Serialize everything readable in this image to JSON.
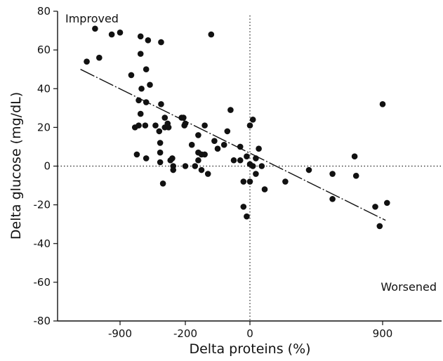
{
  "chart_data": {
    "type": "scatter",
    "xlabel": "Delta proteins (%)",
    "ylabel": "Delta glucose (mg/dL)",
    "xlim": [
      -1200,
      1300
    ],
    "ylim": [
      -80,
      80
    ],
    "x_ticks": [
      -900,
      -200,
      0,
      900
    ],
    "x_tick_labels": [
      "-900",
      "-200",
      "0",
      "900"
    ],
    "y_ticks": [
      -80,
      -60,
      -40,
      -20,
      0,
      20,
      40,
      60,
      80
    ],
    "y_tick_labels": [
      "-80",
      "-60",
      "-40",
      "-20",
      "0",
      "20",
      "40",
      "60",
      "80"
    ],
    "grid": false,
    "reference_lines": {
      "x": 0,
      "y": 0,
      "style": "dotted"
    },
    "annotations": [
      {
        "text": "Improved",
        "position": "top-left"
      },
      {
        "text": "Worsened",
        "position": "bottom-right"
      }
    ],
    "trend_line": {
      "style": "dash-dot",
      "from": [
        -1090,
        50
      ],
      "to": [
        920,
        -28
      ]
    },
    "points": [
      [
        -1020,
        71
      ],
      [
        -940,
        68
      ],
      [
        -900,
        69
      ],
      [
        -680,
        67
      ],
      [
        -600,
        65
      ],
      [
        -460,
        64
      ],
      [
        -1060,
        54
      ],
      [
        -1000,
        56
      ],
      [
        -120,
        68
      ],
      [
        -680,
        58
      ],
      [
        -620,
        50
      ],
      [
        -580,
        42
      ],
      [
        -780,
        47
      ],
      [
        -670,
        40
      ],
      [
        -700,
        34
      ],
      [
        -620,
        33
      ],
      [
        -460,
        32
      ],
      [
        -680,
        27
      ],
      [
        -700,
        21
      ],
      [
        -740,
        20
      ],
      [
        -630,
        21
      ],
      [
        -520,
        21
      ],
      [
        -480,
        18
      ],
      [
        -470,
        12
      ],
      [
        -470,
        7
      ],
      [
        -470,
        2
      ],
      [
        -440,
        -9
      ],
      [
        -620,
        4
      ],
      [
        -720,
        6
      ],
      [
        -420,
        25
      ],
      [
        -420,
        20
      ],
      [
        -390,
        22
      ],
      [
        -380,
        20
      ],
      [
        -360,
        3
      ],
      [
        -340,
        4
      ],
      [
        -330,
        0
      ],
      [
        -330,
        -2
      ],
      [
        -240,
        25
      ],
      [
        -200,
        22
      ],
      [
        -210,
        21
      ],
      [
        -220,
        25
      ],
      [
        -180,
        11
      ],
      [
        -160,
        7
      ],
      [
        -150,
        6
      ],
      [
        -140,
        6
      ],
      [
        -140,
        21
      ],
      [
        -160,
        16
      ],
      [
        -110,
        13
      ],
      [
        -100,
        9
      ],
      [
        -80,
        11
      ],
      [
        -70,
        18
      ],
      [
        -60,
        29
      ],
      [
        -30,
        10
      ],
      [
        -50,
        3
      ],
      [
        -30,
        3
      ],
      [
        -160,
        3
      ],
      [
        -150,
        -2
      ],
      [
        -130,
        -4
      ],
      [
        -200,
        0
      ],
      [
        -170,
        0
      ],
      [
        -20,
        -8
      ],
      [
        0,
        -8
      ],
      [
        0,
        21
      ],
      [
        20,
        24
      ],
      [
        20,
        0
      ],
      [
        40,
        4
      ],
      [
        40,
        -4
      ],
      [
        60,
        9
      ],
      [
        80,
        0
      ],
      [
        100,
        -12
      ],
      [
        -10,
        5
      ],
      [
        0,
        1
      ],
      [
        -20,
        -21
      ],
      [
        -10,
        -26
      ],
      [
        240,
        -8
      ],
      [
        400,
        -2
      ],
      [
        560,
        -4
      ],
      [
        720,
        -5
      ],
      [
        710,
        5
      ],
      [
        560,
        -17
      ],
      [
        850,
        -21
      ],
      [
        880,
        -31
      ],
      [
        900,
        32
      ],
      [
        930,
        -19
      ]
    ]
  }
}
